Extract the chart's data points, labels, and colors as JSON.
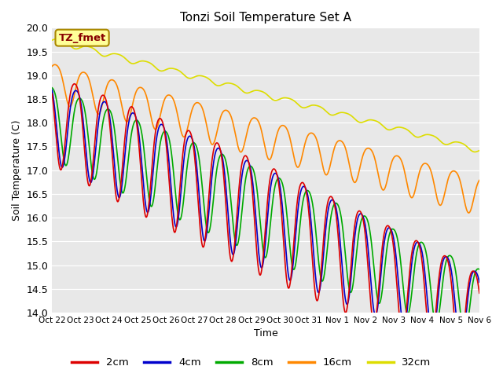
{
  "title": "Tonzi Soil Temperature Set A",
  "xlabel": "Time",
  "ylabel": "Soil Temperature (C)",
  "ylim": [
    14.0,
    20.0
  ],
  "bg_color": "#e8e8e8",
  "fig_bg": "#ffffff",
  "annotation_text": "TZ_fmet",
  "annotation_bg": "#ffff99",
  "annotation_edge": "#aa8800",
  "annotation_text_color": "#880000",
  "line_colors": {
    "2cm": "#dd0000",
    "4cm": "#0000cc",
    "8cm": "#00aa00",
    "16cm": "#ff8800",
    "32cm": "#dddd00"
  },
  "line_width": 1.2,
  "legend_colors": {
    "2cm": "#dd0000",
    "4cm": "#0000cc",
    "8cm": "#00aa00",
    "16cm": "#ff8800",
    "32cm": "#dddd00"
  },
  "xtick_labels": [
    "Oct 22",
    "Oct 23",
    "Oct 24",
    "Oct 25",
    "Oct 26",
    "Oct 27",
    "Oct 28",
    "Oct 29",
    "Oct 30",
    "Oct 31",
    "Nov 1",
    "Nov 2",
    "Nov 3",
    "Nov 4",
    "Nov 5",
    "Nov 6"
  ]
}
